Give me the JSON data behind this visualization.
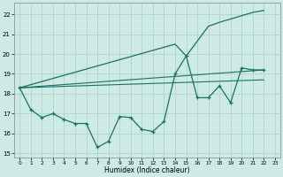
{
  "xlabel": "Humidex (Indice chaleur)",
  "background_color": "#ceeae4",
  "grid_color": "#aacfc8",
  "line_color": "#1a7068",
  "xlim": [
    -0.5,
    23.5
  ],
  "ylim": [
    14.8,
    22.6
  ],
  "yticks": [
    15,
    16,
    17,
    18,
    19,
    20,
    21,
    22
  ],
  "xticks": [
    0,
    1,
    2,
    3,
    4,
    5,
    6,
    7,
    8,
    9,
    10,
    11,
    12,
    13,
    14,
    15,
    16,
    17,
    18,
    19,
    20,
    21,
    22,
    23
  ],
  "main_x": [
    0,
    1,
    2,
    3,
    4,
    5,
    6,
    7,
    8,
    9,
    10,
    11,
    12,
    13,
    14,
    15,
    16,
    17,
    18,
    19,
    20,
    21,
    22
  ],
  "main_y": [
    18.3,
    17.2,
    16.8,
    17.0,
    16.7,
    16.5,
    16.5,
    15.3,
    15.6,
    16.85,
    16.8,
    16.2,
    16.1,
    16.6,
    19.0,
    19.9,
    17.8,
    17.8,
    18.4,
    17.55,
    19.3,
    19.2,
    19.2
  ],
  "trend1_x": [
    0,
    22
  ],
  "trend1_y": [
    18.3,
    19.2
  ],
  "trend2_x": [
    0,
    22
  ],
  "trend2_y": [
    18.3,
    18.7
  ],
  "upper_x": [
    0,
    14,
    15,
    17,
    18,
    21,
    22
  ],
  "upper_y": [
    18.3,
    20.5,
    19.9,
    21.4,
    21.6,
    22.1,
    22.2
  ]
}
